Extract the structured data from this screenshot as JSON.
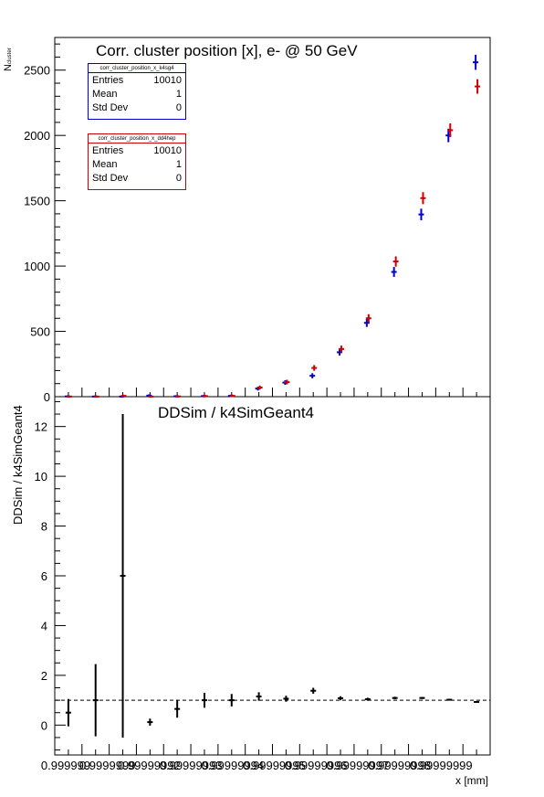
{
  "top_panel": {
    "title": "Corr. cluster position [x],  e- @ 50 GeV",
    "ylabel_main": "N",
    "ylabel_sub": "cluster",
    "y_ticks": [
      "0",
      "500",
      "1000",
      "1500",
      "2000",
      "2500"
    ]
  },
  "bottom_panel": {
    "title": "DDSim / k4SimGeant4",
    "ylabel": "DDSim / k4SimGeant4",
    "xlabel": "x [mm]",
    "y_ticks": [
      "0",
      "2",
      "4",
      "6",
      "8",
      "10",
      "12"
    ],
    "x_tick_labels": [
      "0.999999",
      "0.9999999",
      "0.99999992",
      "0.99999993",
      "0.99999994",
      "0.99999995",
      "0.99999996",
      "0.99999997",
      "0.99999998",
      "0.99999999"
    ]
  },
  "stats_k4sg4": {
    "name": "corr_cluster_position_x_k4sg4",
    "rows": [
      {
        "label": "Entries",
        "value": "10010"
      },
      {
        "label": "Mean",
        "value": "1"
      },
      {
        "label": "Std Dev",
        "value": "0"
      }
    ],
    "color": "#0000cc"
  },
  "stats_dd4hep": {
    "name": "corr_cluster_position_x_dd4hep",
    "rows": [
      {
        "label": "Entries",
        "value": "10010"
      },
      {
        "label": "Mean",
        "value": "1"
      },
      {
        "label": "Std Dev",
        "value": "0"
      }
    ],
    "color": "#cc0000"
  },
  "chart_data": [
    {
      "type": "scatter",
      "title": "Corr. cluster position [x],  e- @ 50 GeV",
      "ylabel": "N cluster",
      "ylim": [
        0,
        2750
      ],
      "x_bin_index": [
        1,
        2,
        3,
        4,
        5,
        6,
        7,
        8,
        9,
        10,
        11,
        12,
        13,
        14,
        15,
        16
      ],
      "series": [
        {
          "name": "corr_cluster_position_x_k4sg4",
          "color": "#0000cc",
          "values": [
            2,
            1,
            1,
            8,
            3,
            4,
            6,
            62,
            108,
            160,
            340,
            565,
            955,
            1395,
            2000,
            2560
          ]
        },
        {
          "name": "corr_cluster_position_x_dd4hep",
          "color": "#cc0000",
          "values": [
            1,
            1,
            6,
            1,
            2,
            4,
            6,
            70,
            112,
            220,
            365,
            600,
            1035,
            1520,
            2040,
            2375
          ]
        }
      ]
    },
    {
      "type": "scatter",
      "title": "DDSim / k4SimGeant4",
      "xlabel": "x [mm]",
      "ylabel": "DDSim / k4SimGeant4",
      "ylim": [
        -1.2,
        13.2
      ],
      "reference_line": 1,
      "x_bin_index": [
        1,
        2,
        3,
        4,
        5,
        6,
        7,
        8,
        9,
        10,
        11,
        12,
        13,
        14,
        15,
        16
      ],
      "series": [
        {
          "name": "",
          "color": "#000000",
          "values": [
            0.5,
            1.0,
            6.0,
            0.12,
            0.65,
            1.0,
            1.0,
            1.15,
            1.06,
            1.38,
            1.08,
            1.04,
            1.09,
            1.09,
            1.02,
            0.93
          ],
          "errors": [
            0.55,
            1.45,
            6.5,
            0.14,
            0.35,
            0.3,
            0.25,
            0.17,
            0.12,
            0.12,
            0.08,
            0.06,
            0.05,
            0.04,
            0.03,
            0.03
          ]
        }
      ]
    }
  ]
}
